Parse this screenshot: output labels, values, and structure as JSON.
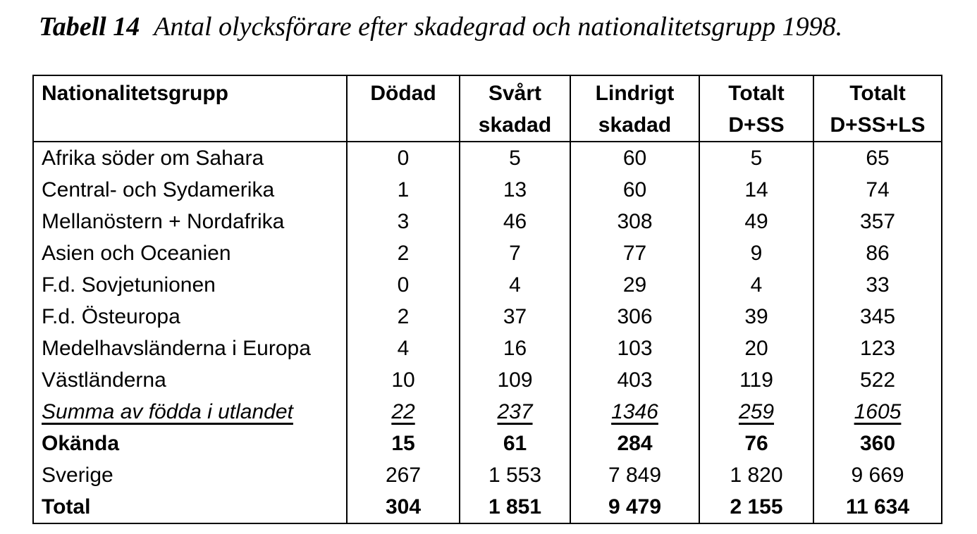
{
  "caption": {
    "label": "Tabell 14",
    "text": "Antal olycksförare efter skadegrad och nationalitetsgrupp 1998."
  },
  "table": {
    "columns": [
      {
        "line1": "Nationalitetsgrupp",
        "line2": ""
      },
      {
        "line1": "Dödad",
        "line2": ""
      },
      {
        "line1": "Svårt",
        "line2": "skadad"
      },
      {
        "line1": "Lindrigt",
        "line2": "skadad"
      },
      {
        "line1": "Totalt",
        "line2": "D+SS"
      },
      {
        "line1": "Totalt",
        "line2": "D+SS+LS"
      }
    ],
    "rows": [
      {
        "name": "Afrika söder om Sahara",
        "values": [
          "0",
          "5",
          "60",
          "5",
          "65"
        ]
      },
      {
        "name": "Central- och Sydamerika",
        "values": [
          "1",
          "13",
          "60",
          "14",
          "74"
        ]
      },
      {
        "name": "Mellanöstern + Nordafrika",
        "values": [
          "3",
          "46",
          "308",
          "49",
          "357"
        ]
      },
      {
        "name": "Asien och Oceanien",
        "values": [
          "2",
          "7",
          "77",
          "9",
          "86"
        ]
      },
      {
        "name": "F.d. Sovjetunionen",
        "values": [
          "0",
          "4",
          "29",
          "4",
          "33"
        ]
      },
      {
        "name": "F.d. Östeuropa",
        "values": [
          "2",
          "37",
          "306",
          "39",
          "345"
        ]
      },
      {
        "name": "Medelhavsländerna i Europa",
        "values": [
          "4",
          "16",
          "103",
          "20",
          "123"
        ]
      },
      {
        "name": "Västländerna",
        "values": [
          "10",
          "109",
          "403",
          "119",
          "522"
        ]
      },
      {
        "name": "Summa av födda i utlandet",
        "values": [
          "22",
          "237",
          "1346",
          "259",
          "1605"
        ]
      },
      {
        "name": "Okända",
        "values": [
          "15",
          "61",
          "284",
          "76",
          "360"
        ]
      },
      {
        "name": "Sverige",
        "values": [
          "267",
          "1 553",
          "7 849",
          "1 820",
          "9 669"
        ]
      },
      {
        "name": "Total",
        "values": [
          "304",
          "1 851",
          "9 479",
          "2 155",
          "11 634"
        ]
      }
    ],
    "colors": {
      "text": "#000000",
      "background": "#ffffff",
      "border": "#000000"
    }
  }
}
